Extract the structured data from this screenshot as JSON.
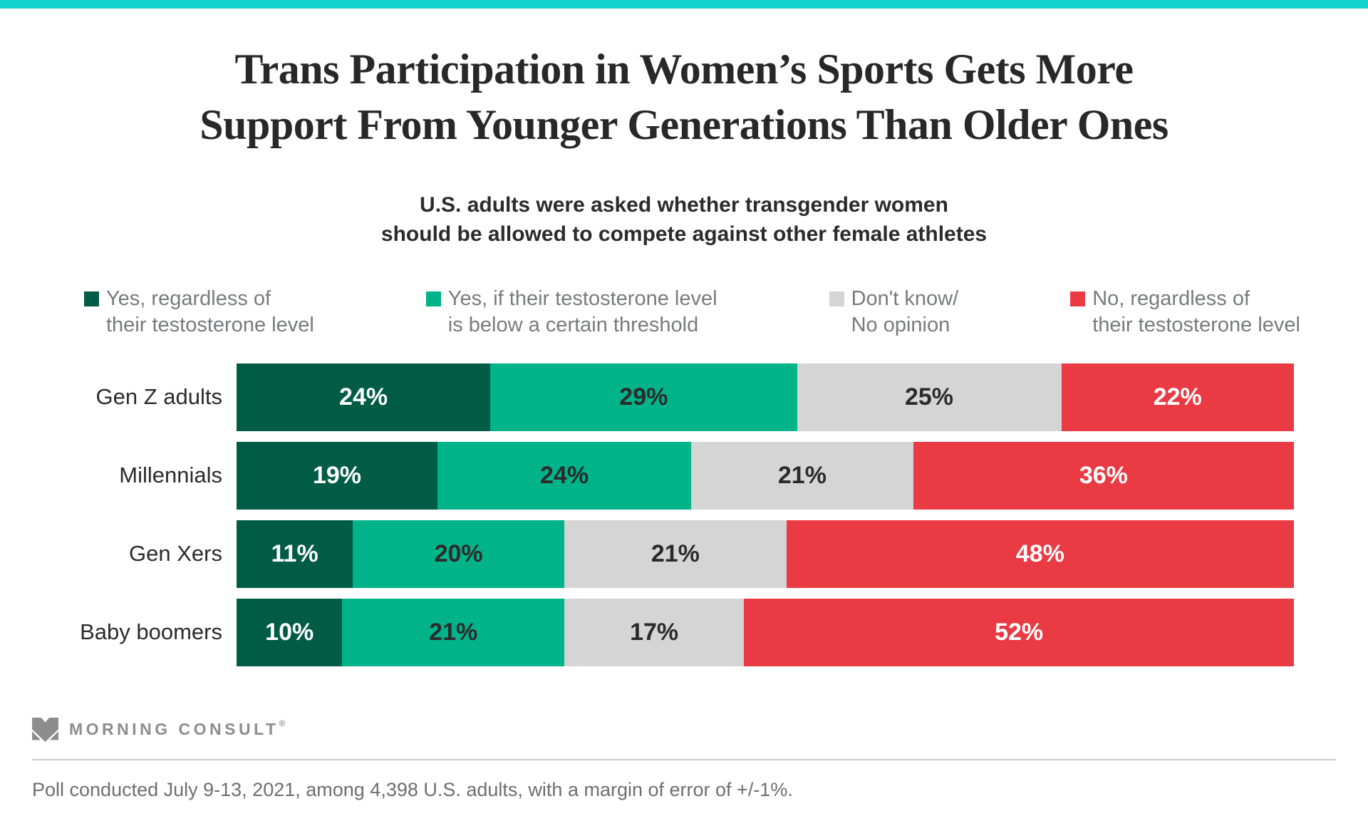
{
  "page": {
    "accent_color": "#12d2cd",
    "background_color": "#ffffff"
  },
  "header": {
    "title_line1": "Trans Participation in Women’s Sports Gets More",
    "title_line2": "Support From Younger Generations Than Older Ones",
    "subtitle_line1": "U.S. adults were asked whether transgender women",
    "subtitle_line2": "should be allowed to compete against other female athletes"
  },
  "chart_data": {
    "type": "bar",
    "orientation": "horizontal",
    "stacked": true,
    "xlim": [
      0,
      100
    ],
    "value_suffix": "%",
    "grid": false,
    "legend_position": "top",
    "categories": [
      "Gen Z adults",
      "Millennials",
      "Gen Xers",
      "Baby boomers"
    ],
    "series": [
      {
        "name": "Yes, regardless of their testosterone level",
        "color": "#005c45",
        "label_color": "#ffffff",
        "values": [
          24,
          19,
          11,
          10
        ]
      },
      {
        "name": "Yes, if their testosterone level is below a certain threshold",
        "color": "#00b388",
        "label_color": "#2b2b2b",
        "values": [
          29,
          24,
          20,
          21
        ]
      },
      {
        "name": "Don't know/ No opinion",
        "color": "#d5d5d5",
        "label_color": "#2b2b2b",
        "values": [
          25,
          21,
          21,
          17
        ]
      },
      {
        "name": "No, regardless of their testosterone level",
        "color": "#ea3a44",
        "label_color": "#ffffff",
        "values": [
          22,
          36,
          48,
          52
        ]
      }
    ],
    "legend": [
      {
        "color": "#005c45",
        "line1": "Yes, regardless of",
        "line2": "their testosterone level"
      },
      {
        "color": "#00b388",
        "line1": "Yes, if their testosterone level",
        "line2": "is below a certain threshold"
      },
      {
        "color": "#d5d5d5",
        "line1": "Don't know/",
        "line2": "No opinion"
      },
      {
        "color": "#ea3a44",
        "line1": "No, regardless of",
        "line2": "their testosterone level"
      }
    ]
  },
  "footer": {
    "brand": "MORNING CONSULT",
    "registered_mark": "®",
    "note": "Poll conducted July 9-13, 2021, among 4,398 U.S. adults, with a margin of error of +/-1%."
  }
}
